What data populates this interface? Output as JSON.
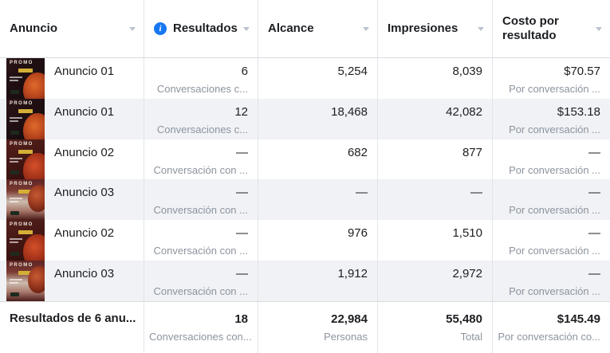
{
  "table": {
    "thumb_text": "PROMO",
    "columns": [
      {
        "key": "anuncio",
        "label": "Anuncio",
        "has_info": false
      },
      {
        "key": "resultados",
        "label": "Resultados",
        "has_info": true
      },
      {
        "key": "alcance",
        "label": "Alcance",
        "has_info": false
      },
      {
        "key": "impresiones",
        "label": "Impresiones",
        "has_info": false
      },
      {
        "key": "costo",
        "label": "Costo por resultado",
        "has_info": false
      }
    ],
    "rows": [
      {
        "name": "Anuncio 01",
        "thumb": "dark",
        "results": "6",
        "results_label": "Conversaciones c...",
        "alcance": "5,254",
        "impresiones": "8,039",
        "costo": "$70.57",
        "costo_label": "Por conversación ..."
      },
      {
        "name": "Anuncio 01",
        "thumb": "dark",
        "results": "12",
        "results_label": "Conversaciones c...",
        "alcance": "18,468",
        "impresiones": "42,082",
        "costo": "$153.18",
        "costo_label": "Por conversación ..."
      },
      {
        "name": "Anuncio 02",
        "thumb": "red",
        "results": "—",
        "results_label": "Conversación con ...",
        "alcance": "682",
        "impresiones": "877",
        "costo": "—",
        "costo_label": "Por conversación ..."
      },
      {
        "name": "Anuncio 03",
        "thumb": "light",
        "results": "—",
        "results_label": "Conversación con ...",
        "alcance": "—",
        "impresiones": "—",
        "costo": "—",
        "costo_label": "Por conversación ..."
      },
      {
        "name": "Anuncio 02",
        "thumb": "red",
        "results": "—",
        "results_label": "Conversación con ...",
        "alcance": "976",
        "impresiones": "1,510",
        "costo": "—",
        "costo_label": "Por conversación ..."
      },
      {
        "name": "Anuncio 03",
        "thumb": "light",
        "results": "—",
        "results_label": "Conversación con ...",
        "alcance": "1,912",
        "impresiones": "2,972",
        "costo": "—",
        "costo_label": "Por conversación ..."
      }
    ],
    "footer": {
      "label": "Resultados de 6 anu...",
      "results": "18",
      "results_label": "Conversaciones con...",
      "alcance": "22,984",
      "alcance_label": "Personas",
      "impresiones": "55,480",
      "impresiones_label": "Total",
      "costo": "$145.49",
      "costo_label": "Por conversación co..."
    }
  },
  "icons": {
    "results_info": "info-icon",
    "column_sort": "chevron-down-icon",
    "info_glyph": "i"
  },
  "colors": {
    "accent_blue": "#1877f2",
    "stripe": "#f0f2f5",
    "divider": "#e2e4e8",
    "header_border": "#d8dadf",
    "text_primary": "#1c1e21",
    "text_secondary": "#8d949e"
  }
}
